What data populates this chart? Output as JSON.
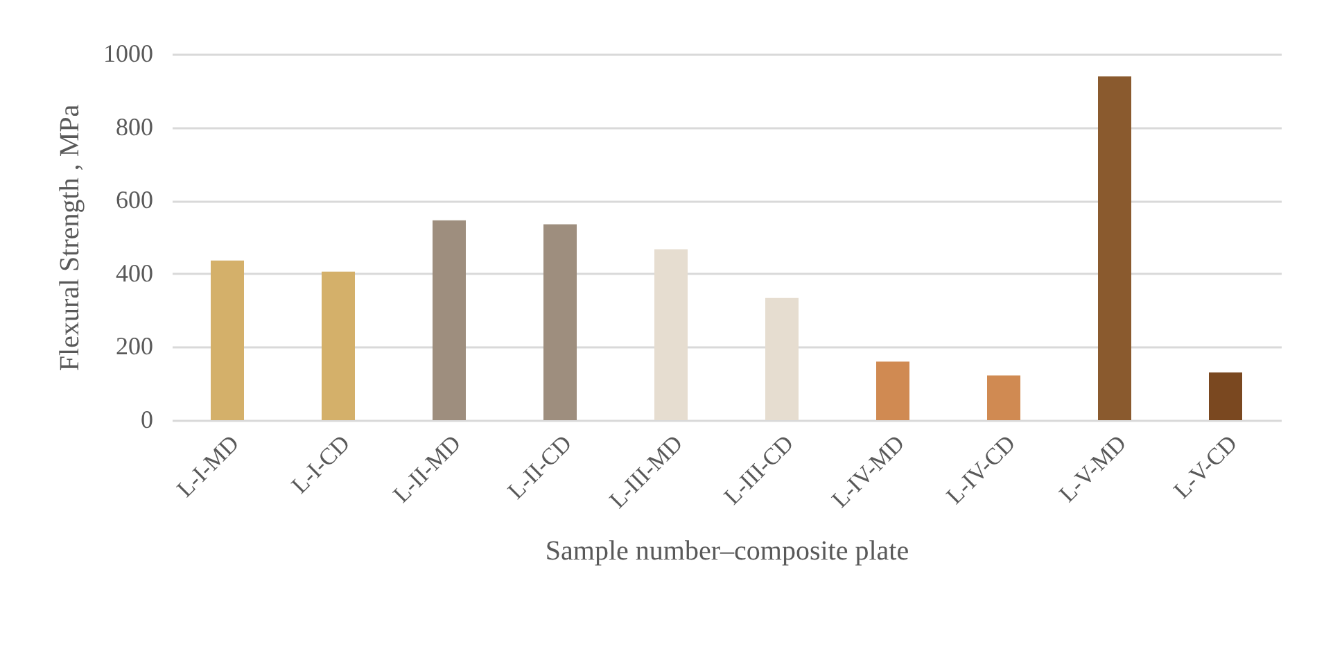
{
  "chart_data": {
    "type": "bar",
    "xlabel": "Sample number–composite plate",
    "ylabel": "Flexural Strength , MPa",
    "categories": [
      "L-I-MD",
      "L-I-CD",
      "L-II-MD",
      "L-II-CD",
      "L-III-MD",
      "L-III-CD",
      "L-IV-MD",
      "L-IV-CD",
      "L-V-MD",
      "L-V-CD"
    ],
    "values": [
      436,
      406,
      546,
      535,
      467,
      334,
      160,
      122,
      939,
      130
    ],
    "colors": [
      "#d4b06a",
      "#d4b06a",
      "#9e8e7e",
      "#9e8e7e",
      "#e6ddd0",
      "#e6ddd0",
      "#d08a52",
      "#d08a52",
      "#8a5a2e",
      "#7a4820"
    ],
    "ylim": [
      0,
      1000
    ],
    "yticks": [
      0,
      200,
      400,
      600,
      800,
      1000
    ],
    "grid": "y"
  }
}
